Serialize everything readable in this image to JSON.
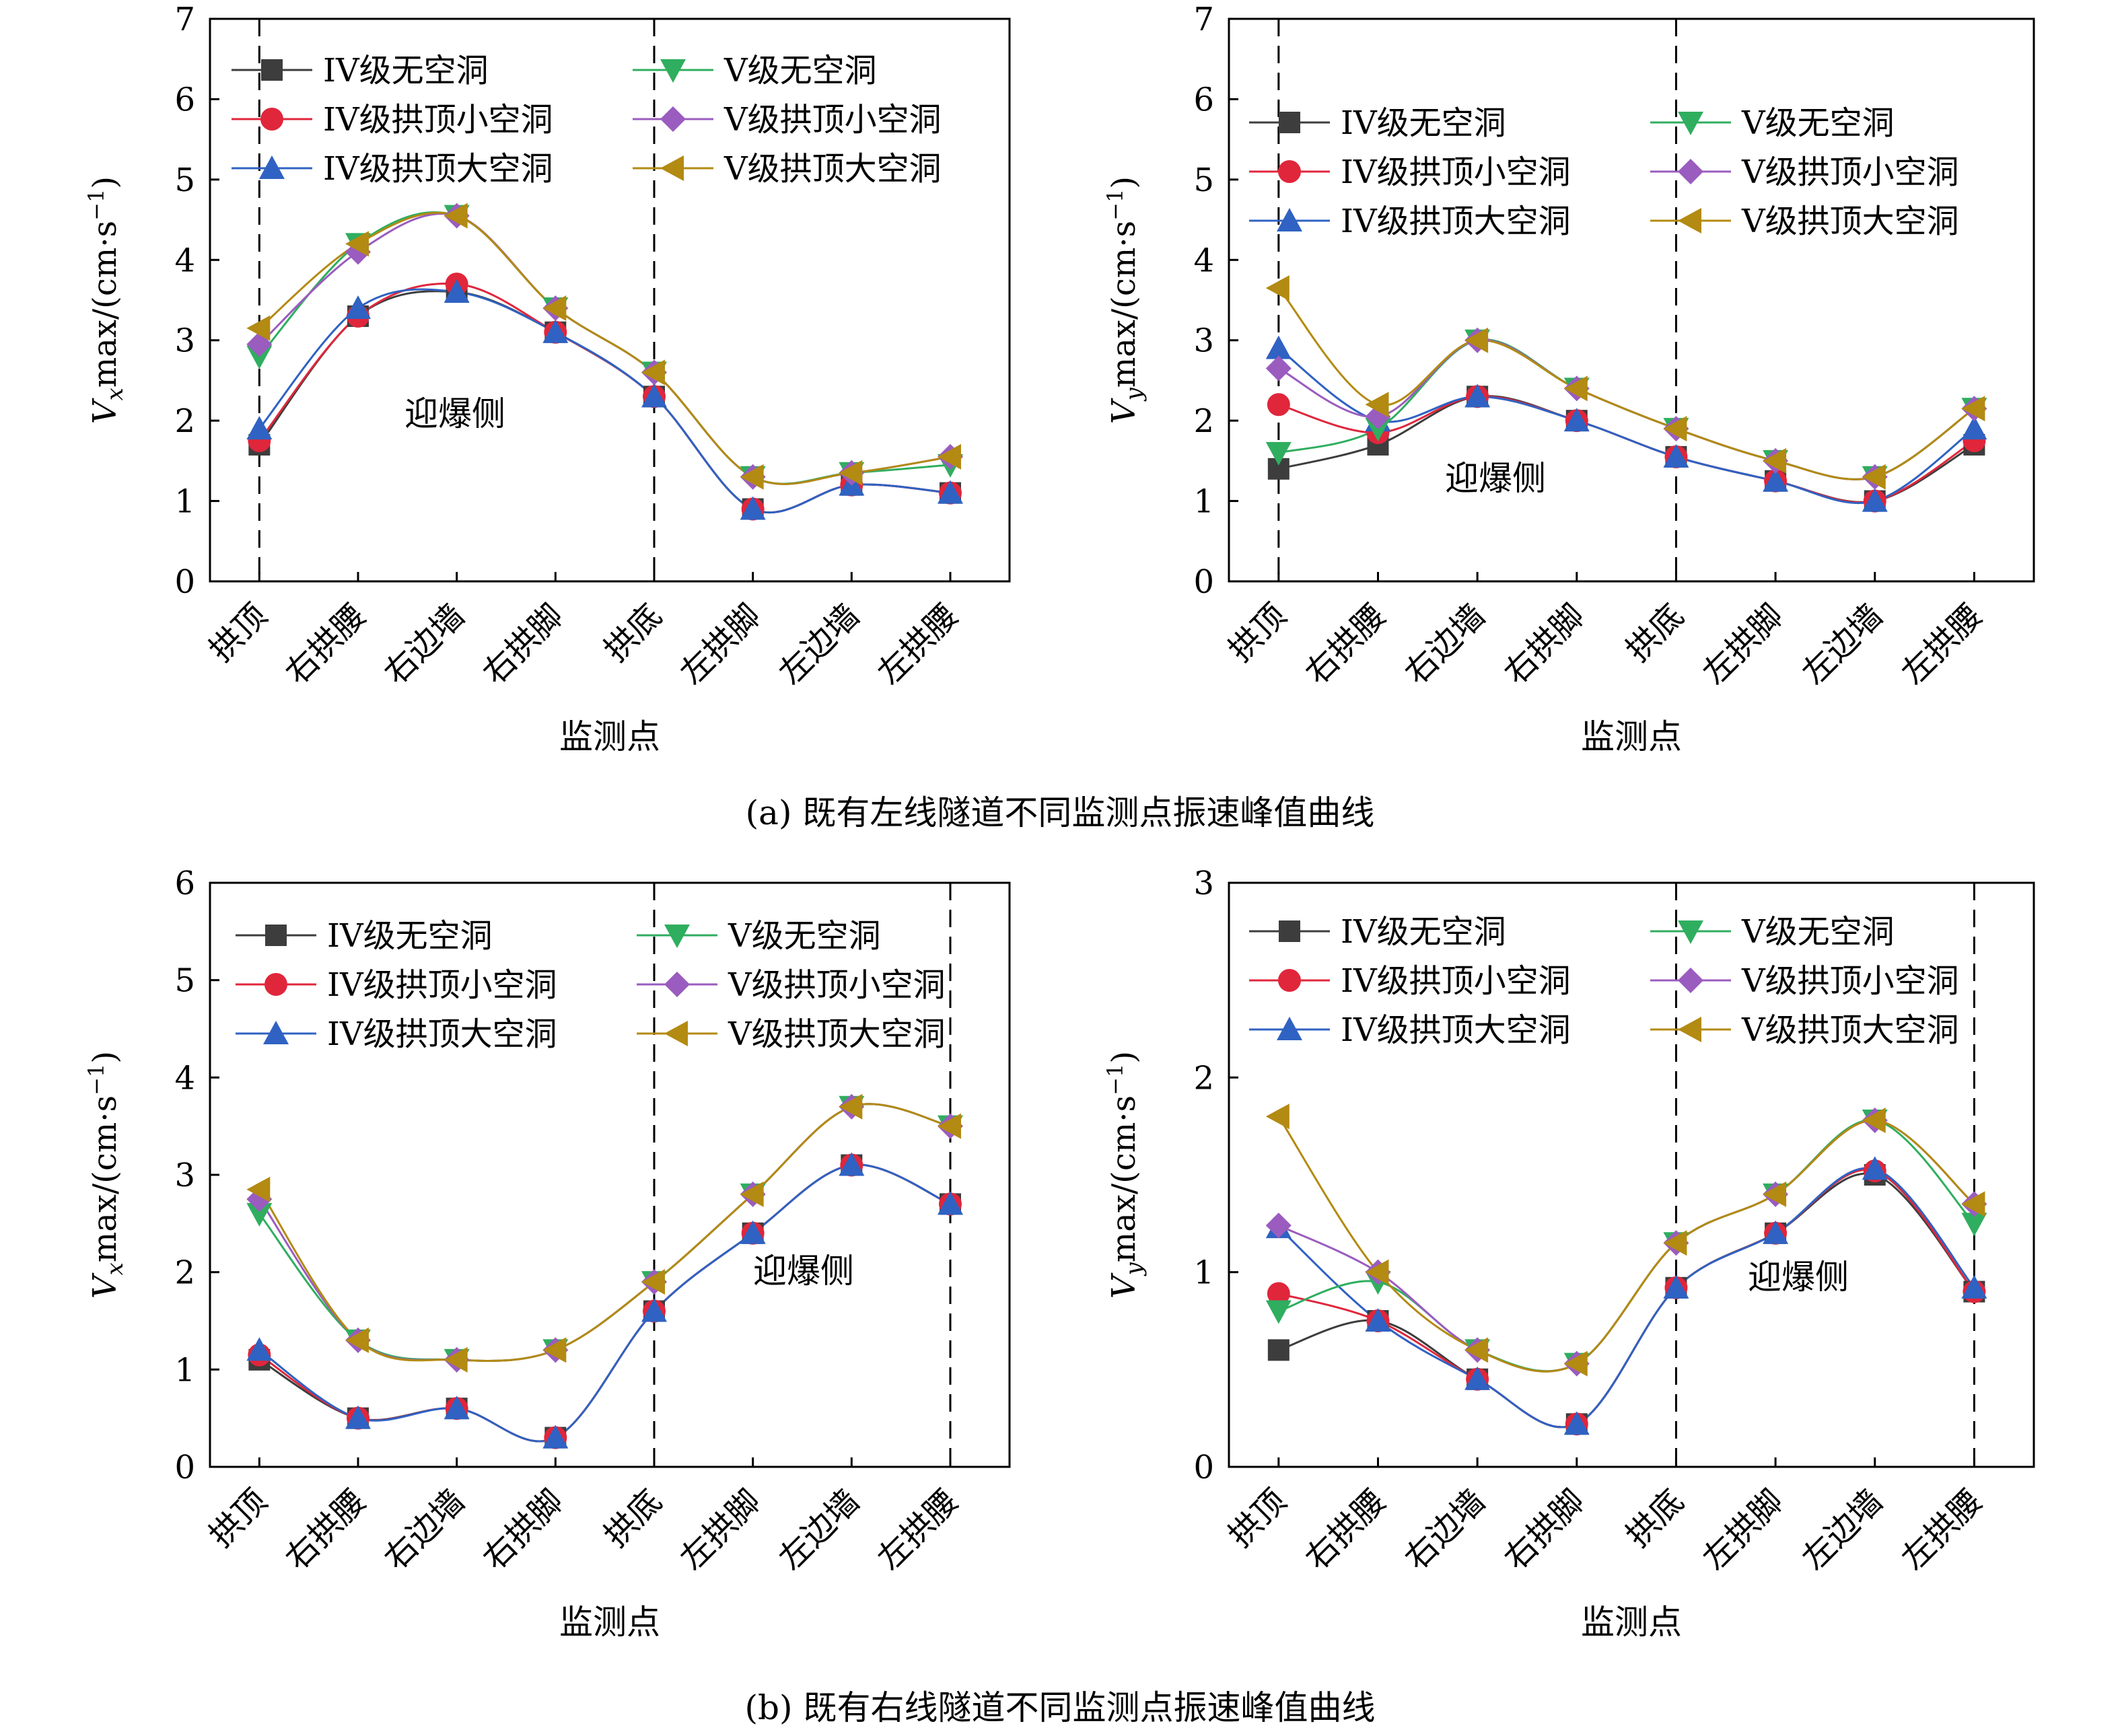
{
  "captions": {
    "a": "(a) 既有左线隧道不同监测点振速峰值曲线",
    "b": "(b) 既有右线隧道不同监测点振速峰值曲线"
  },
  "styles": {
    "series_colors": [
      "#3d3d3d",
      "#e0263b",
      "#2f62c2",
      "#2fae5f",
      "#9a5cbf",
      "#b38a12"
    ],
    "marker_shapes": [
      "square",
      "circle",
      "triangle-up",
      "triangle-down",
      "diamond",
      "triangle-left"
    ]
  },
  "chart_data": [
    {
      "type": "line",
      "id": "chart-a-vx",
      "title": "",
      "xlabel": "监测点",
      "ylabel_main": "V",
      "ylabel_sub": "x",
      "ylabel_rest": "max/(cm·s",
      "ylabel_exp": "−1",
      "ylabel_close": ")",
      "categories": [
        "拱顶",
        "右拱腰",
        "右边墙",
        "右拱脚",
        "拱底",
        "左拱脚",
        "左边墙",
        "左拱腰"
      ],
      "ylim": [
        0,
        7
      ],
      "yticks": [
        0,
        1,
        2,
        3,
        4,
        5,
        6,
        7
      ],
      "dashed_at_categories": [
        0,
        4
      ],
      "annotation": "迎爆侧",
      "series": [
        {
          "name": "IV级无空洞",
          "values": [
            1.7,
            3.3,
            3.6,
            3.1,
            2.3,
            0.9,
            1.2,
            1.1
          ]
        },
        {
          "name": "IV级拱顶小空洞",
          "values": [
            1.75,
            3.3,
            3.7,
            3.1,
            2.3,
            0.9,
            1.2,
            1.1
          ]
        },
        {
          "name": "IV级拱顶大空洞",
          "values": [
            1.9,
            3.4,
            3.6,
            3.1,
            2.3,
            0.9,
            1.2,
            1.1
          ]
        },
        {
          "name": "V级无空洞",
          "values": [
            2.8,
            4.2,
            4.55,
            3.4,
            2.6,
            1.3,
            1.35,
            1.45
          ]
        },
        {
          "name": "V级拱顶小空洞",
          "values": [
            2.95,
            4.1,
            4.55,
            3.4,
            2.6,
            1.3,
            1.35,
            1.55
          ]
        },
        {
          "name": "V级拱顶大空洞",
          "values": [
            3.15,
            4.2,
            4.55,
            3.4,
            2.6,
            1.3,
            1.35,
            1.55
          ]
        }
      ]
    },
    {
      "type": "line",
      "id": "chart-a-vy",
      "title": "",
      "xlabel": "监测点",
      "ylabel_main": "V",
      "ylabel_sub": "y",
      "ylabel_rest": "max/(cm·s",
      "ylabel_exp": "−1",
      "ylabel_close": ")",
      "categories": [
        "拱顶",
        "右拱腰",
        "右边墙",
        "右拱脚",
        "拱底",
        "左拱脚",
        "左边墙",
        "左拱腰"
      ],
      "ylim": [
        0,
        7
      ],
      "yticks": [
        0,
        1,
        2,
        3,
        4,
        5,
        6,
        7
      ],
      "dashed_at_categories": [
        0,
        4
      ],
      "annotation": "迎爆侧",
      "series": [
        {
          "name": "IV级无空洞",
          "values": [
            1.4,
            1.7,
            2.3,
            2.0,
            1.55,
            1.25,
            1.0,
            1.7
          ]
        },
        {
          "name": "IV级拱顶小空洞",
          "values": [
            2.2,
            1.85,
            2.3,
            2.0,
            1.55,
            1.25,
            1.0,
            1.75
          ]
        },
        {
          "name": "IV级拱顶大空洞",
          "values": [
            2.9,
            2.0,
            2.3,
            2.0,
            1.55,
            1.25,
            1.0,
            1.9
          ]
        },
        {
          "name": "V级无空洞",
          "values": [
            1.6,
            1.9,
            3.0,
            2.4,
            1.9,
            1.5,
            1.3,
            2.15
          ]
        },
        {
          "name": "V级拱顶小空洞",
          "values": [
            2.65,
            2.05,
            3.0,
            2.4,
            1.9,
            1.5,
            1.3,
            2.15
          ]
        },
        {
          "name": "V级拱顶大空洞",
          "values": [
            3.65,
            2.2,
            3.0,
            2.4,
            1.9,
            1.5,
            1.3,
            2.15
          ]
        }
      ]
    },
    {
      "type": "line",
      "id": "chart-b-vx",
      "title": "",
      "xlabel": "监测点",
      "ylabel_main": "V",
      "ylabel_sub": "x",
      "ylabel_rest": "max/(cm·s",
      "ylabel_exp": "−1",
      "ylabel_close": ")",
      "categories": [
        "拱顶",
        "右拱腰",
        "右边墙",
        "右拱脚",
        "拱底",
        "左拱脚",
        "左边墙",
        "左拱腰"
      ],
      "ylim": [
        0,
        6
      ],
      "yticks": [
        0,
        1,
        2,
        3,
        4,
        5,
        6
      ],
      "dashed_at_categories": [
        4,
        7
      ],
      "annotation": "迎爆侧",
      "series": [
        {
          "name": "IV级无空洞",
          "values": [
            1.1,
            0.5,
            0.6,
            0.3,
            1.6,
            2.4,
            3.1,
            2.7
          ]
        },
        {
          "name": "IV级拱顶小空洞",
          "values": [
            1.15,
            0.5,
            0.6,
            0.3,
            1.6,
            2.4,
            3.1,
            2.7
          ]
        },
        {
          "name": "IV级拱顶大空洞",
          "values": [
            1.2,
            0.5,
            0.6,
            0.3,
            1.6,
            2.4,
            3.1,
            2.7
          ]
        },
        {
          "name": "V级无空洞",
          "values": [
            2.6,
            1.3,
            1.1,
            1.2,
            1.9,
            2.8,
            3.7,
            3.5
          ]
        },
        {
          "name": "V级拱顶小空洞",
          "values": [
            2.75,
            1.3,
            1.1,
            1.2,
            1.9,
            2.8,
            3.7,
            3.5
          ]
        },
        {
          "name": "V级拱顶大空洞",
          "values": [
            2.85,
            1.3,
            1.1,
            1.2,
            1.9,
            2.8,
            3.7,
            3.5
          ]
        }
      ]
    },
    {
      "type": "line",
      "id": "chart-b-vy",
      "title": "",
      "xlabel": "监测点",
      "ylabel_main": "V",
      "ylabel_sub": "y",
      "ylabel_rest": "max/(cm·s",
      "ylabel_exp": "−1",
      "ylabel_close": ")",
      "categories": [
        "拱顶",
        "右拱腰",
        "右边墙",
        "右拱脚",
        "拱底",
        "左拱脚",
        "左边墙",
        "左拱腰"
      ],
      "ylim": [
        0,
        3
      ],
      "yticks": [
        0,
        1,
        2,
        3
      ],
      "dashed_at_categories": [
        4,
        7
      ],
      "annotation": "迎爆侧",
      "series": [
        {
          "name": "IV级无空洞",
          "values": [
            0.6,
            0.75,
            0.45,
            0.22,
            0.92,
            1.2,
            1.5,
            0.9
          ]
        },
        {
          "name": "IV级拱顶小空洞",
          "values": [
            0.89,
            0.75,
            0.45,
            0.22,
            0.92,
            1.2,
            1.52,
            0.9
          ]
        },
        {
          "name": "IV级拱顶大空洞",
          "values": [
            1.23,
            0.75,
            0.45,
            0.22,
            0.92,
            1.2,
            1.53,
            0.92
          ]
        },
        {
          "name": "V级无空洞",
          "values": [
            0.8,
            0.95,
            0.6,
            0.53,
            1.15,
            1.4,
            1.78,
            1.25
          ]
        },
        {
          "name": "V级拱顶小空洞",
          "values": [
            1.24,
            1.0,
            0.6,
            0.53,
            1.15,
            1.4,
            1.78,
            1.35
          ]
        },
        {
          "name": "V级拱顶大空洞",
          "values": [
            1.8,
            1.0,
            0.6,
            0.53,
            1.15,
            1.4,
            1.78,
            1.35
          ]
        }
      ]
    }
  ]
}
